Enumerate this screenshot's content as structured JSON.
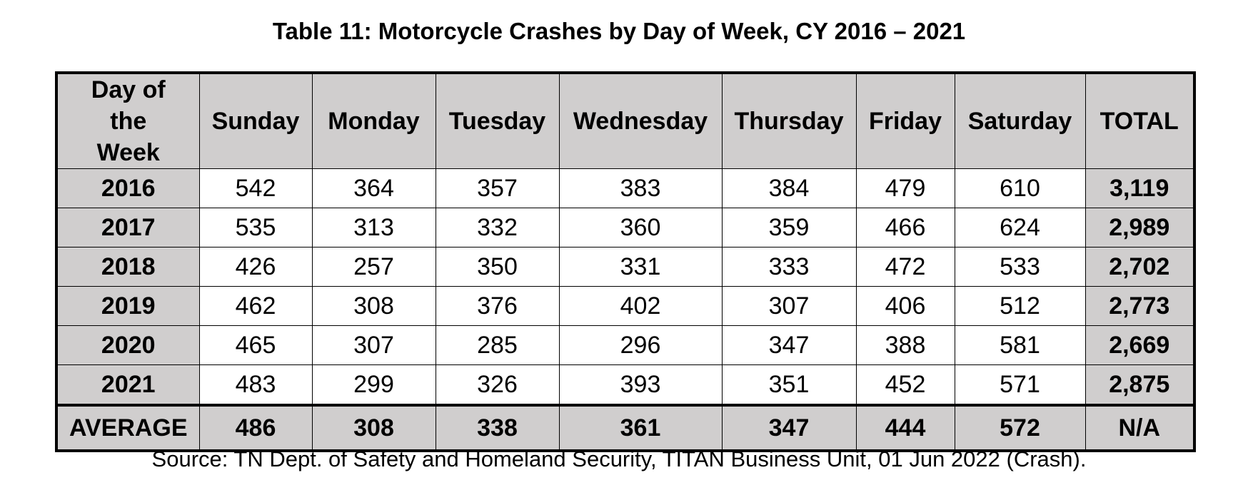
{
  "title": "Table 11: Motorcycle Crashes by Day of Week, CY 2016 – 2021",
  "table": {
    "headers": [
      "Day of the Week",
      "Sunday",
      "Monday",
      "Tuesday",
      "Wednesday",
      "Thursday",
      "Friday",
      "Saturday",
      "TOTAL"
    ],
    "rows": [
      [
        "2016",
        "542",
        "364",
        "357",
        "383",
        "384",
        "479",
        "610",
        "3,119"
      ],
      [
        "2017",
        "535",
        "313",
        "332",
        "360",
        "359",
        "466",
        "624",
        "2,989"
      ],
      [
        "2018",
        "426",
        "257",
        "350",
        "331",
        "333",
        "472",
        "533",
        "2,702"
      ],
      [
        "2019",
        "462",
        "308",
        "376",
        "402",
        "307",
        "406",
        "512",
        "2,773"
      ],
      [
        "2020",
        "465",
        "307",
        "285",
        "296",
        "347",
        "388",
        "581",
        "2,669"
      ],
      [
        "2021",
        "483",
        "299",
        "326",
        "393",
        "351",
        "452",
        "571",
        "2,875"
      ]
    ],
    "average_row": [
      "AVERAGE",
      "486",
      "308",
      "338",
      "361",
      "347",
      "444",
      "572",
      "N/A"
    ]
  },
  "source": "Source: TN Dept. of Safety and Homeland Security, TITAN Business Unit, 01 Jun 2022 (Crash).",
  "colors": {
    "header_fill": "#d0cece",
    "border": "#000000"
  }
}
